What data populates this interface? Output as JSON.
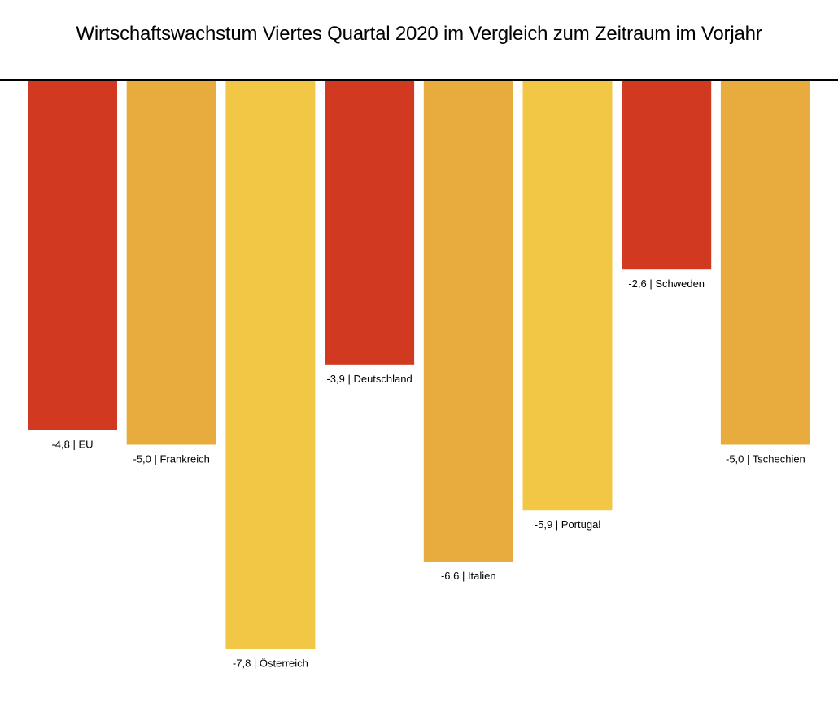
{
  "chart_data": {
    "type": "bar",
    "title": "Wirtschaftswachstum Viertes Quartal 2020 im Vergleich zum Zeitraum im Vorjahr",
    "xlabel": "",
    "ylabel": "",
    "ylim": [
      -8,
      0
    ],
    "grid": false,
    "categories": [
      "EU",
      "Frankreich",
      "Österreich",
      "Deutschland",
      "Italien",
      "Portugal",
      "Schweden",
      "Tschechien"
    ],
    "values": [
      -4.8,
      -5.0,
      -7.8,
      -3.9,
      -6.6,
      -5.9,
      -2.6,
      -5.0
    ],
    "labels": [
      "-4,8 | EU",
      "-5,0 | Frankreich",
      "-7,8 | Österreich",
      "-3,9 | Deutschland",
      "-6,6 | Italien",
      "-5,9 | Portugal",
      "-2,6 | Schweden",
      "-5,0 | Tschechien"
    ],
    "colors": [
      "#D13A20",
      "#E8AB3E",
      "#F2C746",
      "#D13A20",
      "#E8AB3E",
      "#F2C746",
      "#D13A20",
      "#E8AB3E"
    ]
  }
}
